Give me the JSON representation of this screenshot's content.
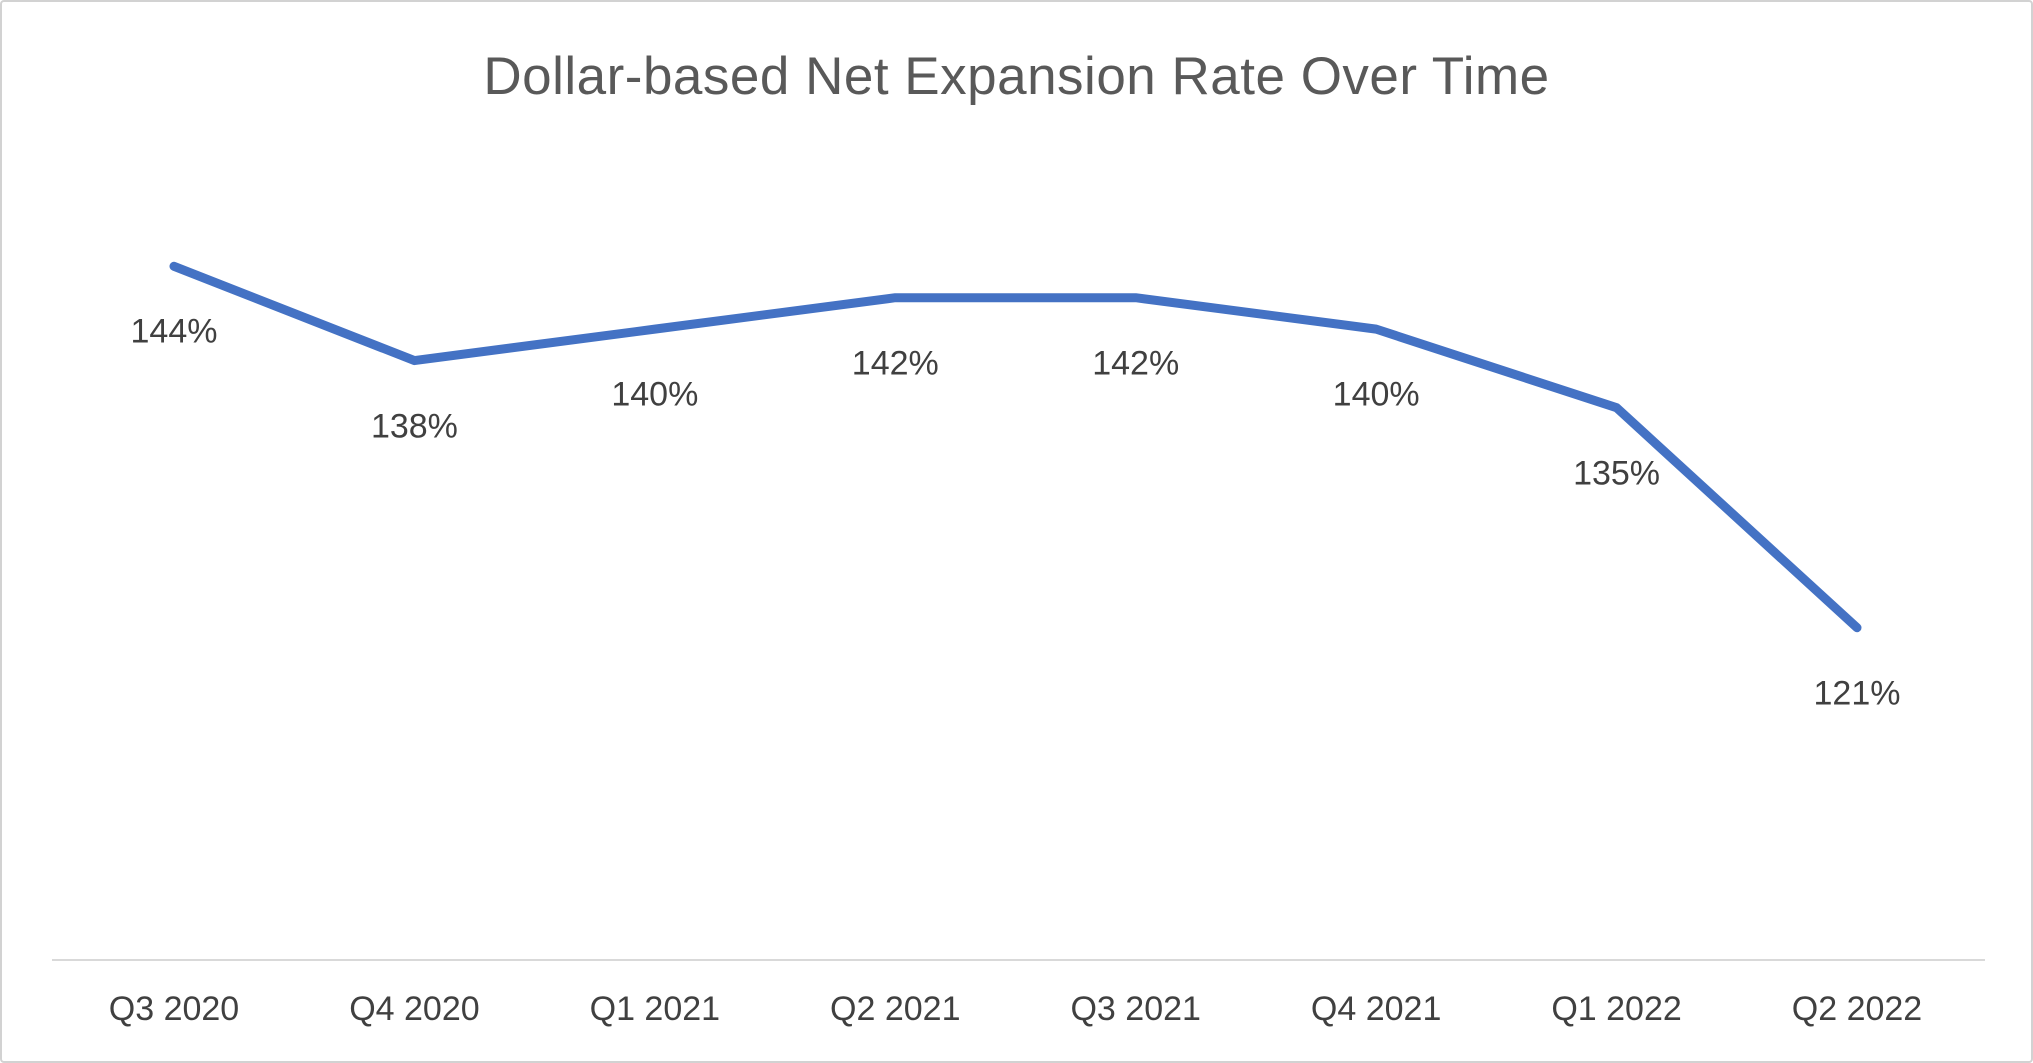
{
  "chart": {
    "title": "Dollar-based Net Expansion Rate Over Time"
  },
  "chart_data": {
    "type": "line",
    "title": "Dollar-based Net Expansion Rate Over Time",
    "categories": [
      "Q3 2020",
      "Q4 2020",
      "Q1 2021",
      "Q2 2021",
      "Q3 2021",
      "Q4 2021",
      "Q1 2022",
      "Q2 2022"
    ],
    "values": [
      144,
      138,
      140,
      142,
      142,
      140,
      135,
      121
    ],
    "data_labels": [
      "144%",
      "138%",
      "140%",
      "142%",
      "142%",
      "140%",
      "135%",
      "121%"
    ],
    "xlabel": "",
    "ylabel": "",
    "ylim": [
      115,
      150
    ],
    "grid": false,
    "legend": "none",
    "series_name": "Dollar-based Net Expansion Rate",
    "colors": {
      "line": "#4472C4",
      "title": "#595959",
      "data_label": "#404040",
      "axis_label": "#404040",
      "axis_line": "#D9D9D9",
      "background": "#FFFFFF",
      "border": "#D2D2D2"
    }
  }
}
